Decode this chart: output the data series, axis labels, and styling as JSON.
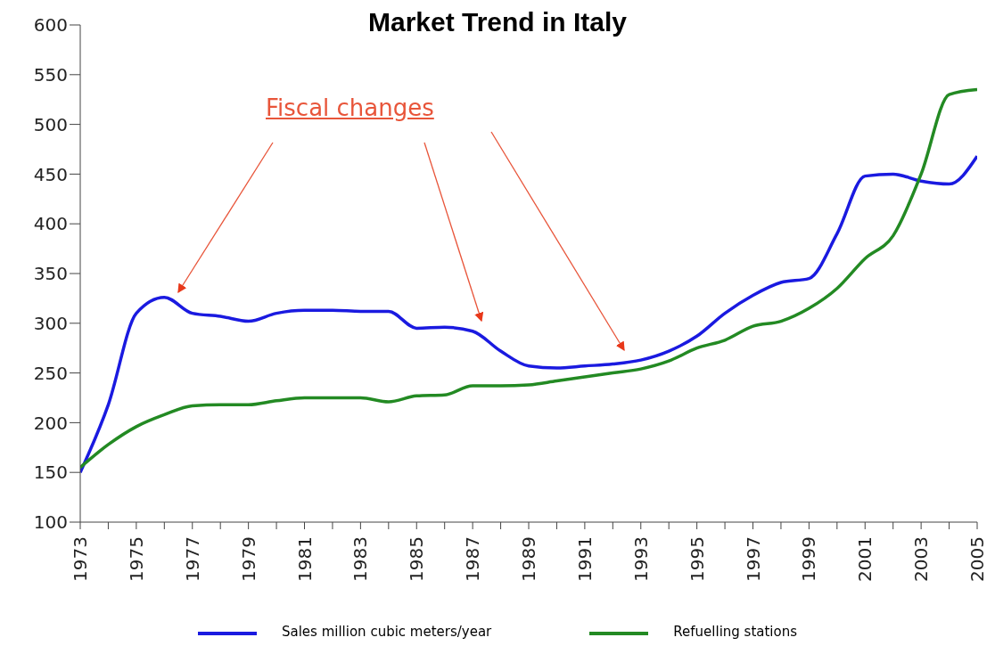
{
  "chart_data": {
    "type": "line",
    "title": "Market Trend in Italy",
    "x": [
      1973,
      1974,
      1975,
      1976,
      1977,
      1978,
      1979,
      1980,
      1981,
      1982,
      1983,
      1984,
      1985,
      1986,
      1987,
      1988,
      1989,
      1990,
      1991,
      1992,
      1993,
      1994,
      1995,
      1996,
      1997,
      1998,
      1999,
      2000,
      2001,
      2002,
      2003,
      2004,
      2005
    ],
    "series": [
      {
        "name": "Sales million cubic meters/year",
        "color": "#1a1ae0",
        "values": [
          150,
          218,
          310,
          326,
          310,
          307,
          302,
          310,
          313,
          313,
          312,
          312,
          295,
          296,
          292,
          272,
          257,
          255,
          257,
          259,
          263,
          272,
          287,
          310,
          328,
          341,
          345,
          390,
          448,
          450,
          443,
          440,
          468
        ]
      },
      {
        "name": "Refuelling stations",
        "color": "#238a23",
        "values": [
          155,
          178,
          196,
          208,
          217,
          218,
          218,
          222,
          225,
          225,
          225,
          221,
          227,
          228,
          237,
          237,
          238,
          242,
          246,
          250,
          254,
          262,
          275,
          283,
          297,
          302,
          315,
          335,
          365,
          388,
          450,
          530,
          535
        ]
      }
    ],
    "xlim": [
      1973,
      2005
    ],
    "xticks": [
      1973,
      {
        "value": 1974,
        "label": null
      },
      1975,
      {
        "value": 1976,
        "label": null
      },
      1977,
      {
        "value": 1978,
        "label": null
      },
      1979,
      {
        "value": 1980,
        "label": null
      },
      1981,
      {
        "value": 1982,
        "label": null
      },
      1983,
      {
        "value": 1984,
        "label": null
      },
      1985,
      {
        "value": 1986,
        "label": null
      },
      1987,
      {
        "value": 1988,
        "label": null
      },
      1989,
      {
        "value": 1990,
        "label": null
      },
      1991,
      {
        "value": 1992,
        "label": null
      },
      1993,
      {
        "value": 1994,
        "label": null
      },
      1995,
      {
        "value": 1996,
        "label": null
      },
      1997,
      {
        "value": 1998,
        "label": null
      },
      1999,
      {
        "value": 2000,
        "label": null
      },
      2001,
      {
        "value": 2002,
        "label": null
      },
      2003,
      {
        "value": 2004,
        "label": null
      },
      2005
    ],
    "ylim": [
      100,
      600
    ],
    "yticks": [
      100,
      150,
      200,
      250,
      300,
      350,
      400,
      450,
      500,
      550,
      600
    ],
    "grid": false,
    "legend": "bottom",
    "marker": "none",
    "line_style": "solid",
    "annotations": [
      "Fiscal changes"
    ]
  }
}
